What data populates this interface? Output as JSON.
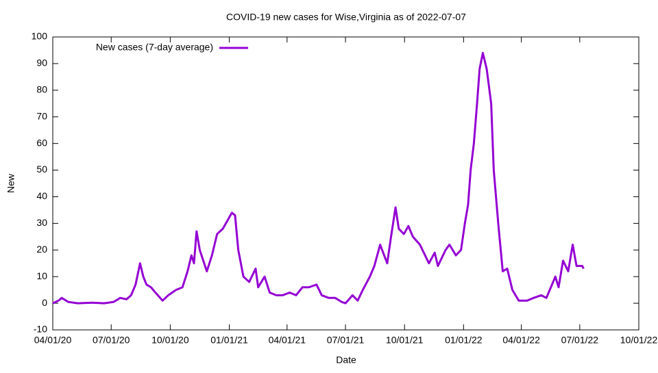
{
  "chart_data": {
    "type": "line",
    "title": "COVID-19 new cases for Wise,Virginia as of 2022-07-07",
    "x_label": "Date",
    "y_label": "New",
    "legend_position": "top-left",
    "grid": false,
    "xlim": [
      "2020-04-01",
      "2022-10-01"
    ],
    "xticks": [
      {
        "value": "2020-04-01",
        "label": "04/01/20"
      },
      {
        "value": "2020-07-01",
        "label": "07/01/20"
      },
      {
        "value": "2020-10-01",
        "label": "10/01/20"
      },
      {
        "value": "2021-01-01",
        "label": "01/01/21"
      },
      {
        "value": "2021-04-01",
        "label": "04/01/21"
      },
      {
        "value": "2021-07-01",
        "label": "07/01/21"
      },
      {
        "value": "2021-10-01",
        "label": "10/01/21"
      },
      {
        "value": "2022-01-01",
        "label": "01/01/22"
      },
      {
        "value": "2022-04-01",
        "label": "04/01/22"
      },
      {
        "value": "2022-07-01",
        "label": "07/01/22"
      },
      {
        "value": "2022-10-01",
        "label": "10/01/22"
      }
    ],
    "ylim": [
      -10,
      100
    ],
    "yticks": [
      -10,
      0,
      10,
      20,
      30,
      40,
      50,
      60,
      70,
      80,
      90,
      100
    ],
    "x": [
      "2020-04-01",
      "2020-04-10",
      "2020-04-15",
      "2020-04-25",
      "2020-05-10",
      "2020-06-01",
      "2020-06-20",
      "2020-07-05",
      "2020-07-15",
      "2020-07-25",
      "2020-08-01",
      "2020-08-08",
      "2020-08-15",
      "2020-08-20",
      "2020-08-25",
      "2020-09-01",
      "2020-09-08",
      "2020-09-19",
      "2020-09-28",
      "2020-10-10",
      "2020-10-20",
      "2020-10-28",
      "2020-11-03",
      "2020-11-07",
      "2020-11-11",
      "2020-11-16",
      "2020-11-27",
      "2020-12-05",
      "2020-12-13",
      "2020-12-22",
      "2020-12-29",
      "2021-01-05",
      "2021-01-10",
      "2021-01-15",
      "2021-01-23",
      "2021-02-01",
      "2021-02-11",
      "2021-02-15",
      "2021-02-25",
      "2021-03-05",
      "2021-03-15",
      "2021-03-25",
      "2021-04-05",
      "2021-04-15",
      "2021-04-25",
      "2021-05-05",
      "2021-05-17",
      "2021-05-25",
      "2021-06-05",
      "2021-06-15",
      "2021-06-25",
      "2021-07-01",
      "2021-07-12",
      "2021-07-20",
      "2021-07-28",
      "2021-08-08",
      "2021-08-15",
      "2021-08-24",
      "2021-09-04",
      "2021-09-10",
      "2021-09-17",
      "2021-09-22",
      "2021-09-30",
      "2021-10-07",
      "2021-10-14",
      "2021-10-25",
      "2021-11-08",
      "2021-11-17",
      "2021-11-22",
      "2021-12-04",
      "2021-12-10",
      "2021-12-20",
      "2021-12-28",
      "2022-01-03",
      "2022-01-08",
      "2022-01-12",
      "2022-01-17",
      "2022-01-22",
      "2022-01-26",
      "2022-01-31",
      "2022-02-06",
      "2022-02-13",
      "2022-02-17",
      "2022-02-24",
      "2022-03-03",
      "2022-03-10",
      "2022-03-18",
      "2022-03-28",
      "2022-04-10",
      "2022-04-20",
      "2022-05-02",
      "2022-05-10",
      "2022-05-24",
      "2022-05-29",
      "2022-06-05",
      "2022-06-13",
      "2022-06-20",
      "2022-06-26",
      "2022-07-05",
      "2022-07-07"
    ],
    "series": [
      {
        "name": "New cases (7-day average)",
        "color": "#9400d3",
        "values": [
          0,
          1,
          2,
          0.5,
          0,
          0.2,
          0,
          0.5,
          2,
          1.5,
          3,
          7,
          15,
          10,
          7,
          6,
          4,
          1,
          3,
          5,
          6,
          12,
          18,
          15,
          27,
          20,
          12,
          18,
          26,
          28,
          31,
          34,
          33,
          20,
          10,
          8,
          13,
          6,
          10,
          4,
          3,
          3,
          4,
          3,
          6,
          6,
          7,
          3,
          2,
          2,
          0.5,
          0,
          3,
          1,
          5,
          10,
          14,
          22,
          15,
          25,
          36,
          28,
          26,
          29,
          25,
          22,
          15,
          19,
          14,
          20,
          22,
          18,
          20,
          30,
          37,
          50,
          60,
          75,
          88,
          94,
          88,
          75,
          50,
          30,
          12,
          13,
          5,
          1,
          1,
          2,
          3,
          2,
          10,
          6,
          16,
          12,
          22,
          14,
          14,
          13
        ]
      }
    ]
  }
}
